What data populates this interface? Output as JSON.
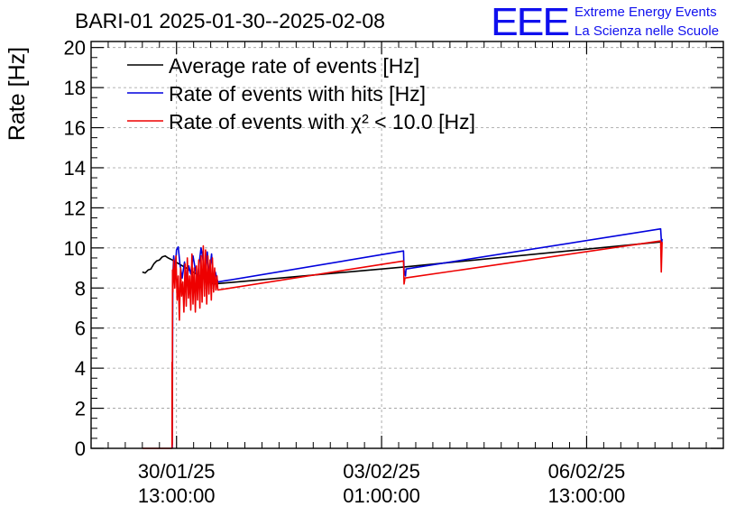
{
  "header": {
    "title": "BARI-01 2025-01-30--2025-02-08",
    "logo_text": "EEE",
    "brand_line1": "Extreme Energy Events",
    "brand_line2": "La Scienza nelle Scuole"
  },
  "colors": {
    "average": "#000000",
    "hits": "#0000dd",
    "chi2": "#ee0000",
    "brand": "#1010ee",
    "grid": "#9a9a9a"
  },
  "chart_data": {
    "type": "line",
    "title": "BARI-01 2025-01-30--2025-02-08",
    "xlabel": "",
    "ylabel": "Rate [Hz]",
    "x_units": "hours since 2025-01-30 00:00",
    "xlim": [
      7.0,
      229.0
    ],
    "ylim": [
      0,
      20.3
    ],
    "y_ticks": [
      0,
      2,
      4,
      6,
      8,
      10,
      12,
      14,
      16,
      18,
      20
    ],
    "y_tick_labels": [
      "0",
      "2",
      "4",
      "6",
      "8",
      "10",
      "12",
      "14",
      "16",
      "18",
      "20"
    ],
    "x_ticks": [
      {
        "x": 37,
        "line1": "30/01/25",
        "line2": "13:00:00"
      },
      {
        "x": 109,
        "line1": "03/02/25",
        "line2": "01:00:00"
      },
      {
        "x": 181,
        "line1": "06/02/25",
        "line2": "13:00:00"
      }
    ],
    "grid": true,
    "legend_position": "top-left",
    "series": [
      {
        "name": "Average rate of events [Hz]",
        "key": "average",
        "x": [
          25.0,
          26.0,
          27.0,
          28.0,
          29.0,
          30.0,
          31.0,
          32.0,
          33.0,
          34.0,
          35.5,
          50.0,
          117.0,
          207.0
        ],
        "y": [
          8.8,
          8.75,
          8.9,
          8.95,
          9.2,
          9.35,
          9.4,
          9.55,
          9.6,
          9.5,
          9.4,
          8.2,
          9.05,
          10.3
        ]
      },
      {
        "name": "Rate of events with hits [Hz]",
        "key": "hits",
        "x": [
          35.5,
          35.7,
          36.0,
          36.5,
          37.0,
          37.6,
          38.2,
          39.0,
          39.8,
          40.5,
          41.3,
          42.0,
          42.8,
          43.5,
          44.3,
          45.0,
          45.6,
          46.2,
          47.0,
          47.8,
          48.5,
          49.3,
          50.0,
          50.6,
          51.5,
          116.7,
          116.9,
          117.4,
          117.6,
          207.0,
          207.3,
          207.5
        ],
        "y": [
          0,
          8.6,
          9.6,
          8.9,
          9.9,
          10.05,
          9.2,
          8.5,
          9.3,
          8.2,
          9.1,
          8.7,
          9.6,
          9.0,
          8.4,
          9.3,
          10.0,
          9.5,
          8.6,
          9.8,
          8.6,
          9.7,
          8.1,
          8.8,
          8.3,
          9.85,
          8.9,
          8.6,
          8.95,
          10.95,
          10.2,
          10.45
        ]
      },
      {
        "name": "Rate of events with χ² < 10.0 [Hz]",
        "key": "chi2",
        "x": [
          25.0,
          35.4,
          35.45,
          35.5,
          35.6,
          35.7,
          36.0,
          36.4,
          36.8,
          37.2,
          37.6,
          38.0,
          38.4,
          38.8,
          39.2,
          39.6,
          40.0,
          40.4,
          40.8,
          41.2,
          41.6,
          42.0,
          42.4,
          42.8,
          43.2,
          43.6,
          44.0,
          44.4,
          44.8,
          45.2,
          45.6,
          46.0,
          46.4,
          46.8,
          47.2,
          47.6,
          48.0,
          48.4,
          48.8,
          49.2,
          49.6,
          50.0,
          50.4,
          50.8,
          51.2,
          51.5,
          116.7,
          116.9,
          117.2,
          207.0,
          207.2,
          207.5
        ],
        "y": [
          0,
          0,
          4.3,
          0.2,
          8.9,
          7.8,
          9.4,
          8.0,
          9.6,
          7.4,
          8.6,
          6.4,
          9.0,
          7.6,
          8.3,
          6.8,
          9.2,
          7.1,
          9.5,
          7.5,
          8.6,
          6.9,
          9.7,
          7.2,
          9.0,
          6.8,
          9.1,
          7.4,
          9.4,
          7.0,
          9.6,
          7.3,
          10.1,
          7.6,
          9.9,
          7.2,
          9.6,
          7.7,
          9.4,
          7.4,
          9.5,
          7.8,
          9.0,
          7.9,
          8.6,
          7.9,
          9.35,
          8.2,
          8.5,
          10.35,
          8.8,
          10.3
        ]
      }
    ]
  }
}
